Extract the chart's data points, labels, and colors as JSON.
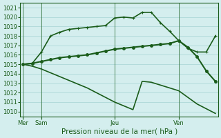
{
  "background_color": "#d4eeee",
  "grid_color": "#99cccc",
  "line_color": "#1a5c1a",
  "title": "Pression niveau de la mer( hPa )",
  "ylim": [
    1009.5,
    1021.5
  ],
  "yticks": [
    1010,
    1011,
    1012,
    1013,
    1014,
    1015,
    1016,
    1017,
    1018,
    1019,
    1020,
    1021
  ],
  "xtick_positions": [
    0,
    2,
    10,
    17
  ],
  "xtick_labels": [
    "Mer",
    "Sam",
    "Jeu",
    "Ven"
  ],
  "vline_positions": [
    0,
    2,
    10,
    17
  ],
  "xlim": [
    -0.3,
    21.3
  ],
  "series1_x": [
    0,
    1,
    2,
    3,
    4,
    5,
    6,
    7,
    8,
    9,
    10,
    11,
    12,
    13,
    14,
    15,
    16,
    17,
    18,
    19,
    20,
    21
  ],
  "series1_y": [
    1015.0,
    1015.1,
    1016.3,
    1018.0,
    1018.4,
    1018.7,
    1018.8,
    1018.9,
    1019.0,
    1019.1,
    1019.9,
    1020.0,
    1019.9,
    1020.5,
    1020.5,
    1019.4,
    1018.5,
    1017.5,
    1016.7,
    1016.3,
    1016.3,
    1018.0
  ],
  "series2_x": [
    0,
    1,
    2,
    3,
    4,
    5,
    6,
    7,
    8,
    9,
    10,
    11,
    12,
    13,
    14,
    15,
    16,
    17,
    18,
    19,
    20,
    21
  ],
  "series2_y": [
    1015.0,
    1015.1,
    1015.3,
    1015.5,
    1015.7,
    1015.8,
    1015.9,
    1016.0,
    1016.2,
    1016.4,
    1016.6,
    1016.7,
    1016.8,
    1016.9,
    1017.0,
    1017.1,
    1017.2,
    1017.5,
    1016.8,
    1015.8,
    1014.3,
    1013.2
  ],
  "series3_x": [
    0,
    1,
    2,
    3,
    4,
    5,
    6,
    7,
    8,
    9,
    10,
    11,
    12,
    13,
    14,
    15,
    16,
    17,
    18,
    19,
    20,
    21
  ],
  "series3_y": [
    1015.0,
    1014.8,
    1014.5,
    1014.1,
    1013.7,
    1013.3,
    1012.9,
    1012.5,
    1012.0,
    1011.5,
    1011.0,
    1010.6,
    1010.2,
    1013.2,
    1013.1,
    1012.8,
    1012.5,
    1012.2,
    1011.5,
    1010.8,
    1010.3,
    1009.8
  ],
  "marker_size": 2.5,
  "linewidth1": 1.2,
  "linewidth2": 1.5,
  "linewidth3": 1.2,
  "fontsize_ticks": 6,
  "fontsize_xlabel": 7.5
}
